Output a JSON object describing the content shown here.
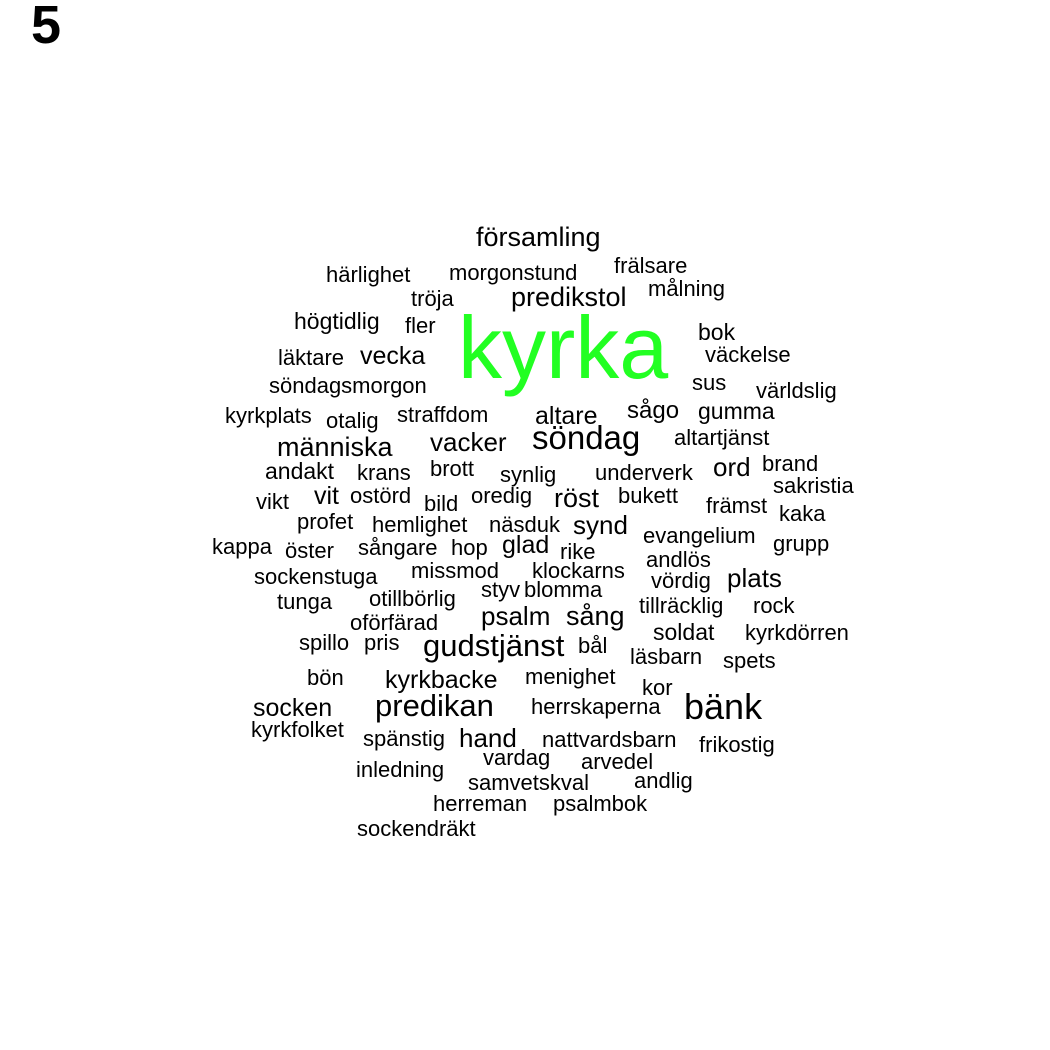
{
  "panel_label": "5",
  "colors": {
    "highlight": "#22ff22",
    "text": "#000000",
    "background": "#ffffff"
  },
  "words": [
    "kyrka",
    "församling",
    "härlighet",
    "morgonstund",
    "frälsare",
    "tröja",
    "predikstol",
    "målning",
    "högtidlig",
    "fler",
    "bok",
    "läktare",
    "vecka",
    "väckelse",
    "söndagsmorgon",
    "sus",
    "världslig",
    "kyrkplats",
    "otalig",
    "straffdom",
    "altare",
    "sågo",
    "gumma",
    "människa",
    "vacker",
    "söndag",
    "altartjänst",
    "andakt",
    "krans",
    "brott",
    "synlig",
    "underverk",
    "ord",
    "brand",
    "vikt",
    "vit",
    "ostörd",
    "bild",
    "oredig",
    "röst",
    "bukett",
    "sakristia",
    "främst",
    "kaka",
    "profet",
    "hemlighet",
    "näsduk",
    "synd",
    "evangelium",
    "kappa",
    "öster",
    "sångare",
    "hop",
    "glad",
    "rike",
    "grupp",
    "andlös",
    "sockenstuga",
    "missmod",
    "klockarns",
    "vördig",
    "plats",
    "styv",
    "blomma",
    "tunga",
    "otillbörlig",
    "tillräcklig",
    "rock",
    "oförfärad",
    "psalm",
    "sång",
    "soldat",
    "kyrkdörren",
    "spillo",
    "pris",
    "gudstjänst",
    "bål",
    "läsbarn",
    "spets",
    "bön",
    "kyrkbacke",
    "menighet",
    "kor",
    "socken",
    "predikan",
    "herrskaperna",
    "bänk",
    "kyrkfolket",
    "spänstig",
    "hand",
    "nattvardsbarn",
    "frikostig",
    "vardag",
    "arvedel",
    "inledning",
    "samvetskval",
    "andlig",
    "herreman",
    "psalmbok",
    "sockendräkt"
  ]
}
